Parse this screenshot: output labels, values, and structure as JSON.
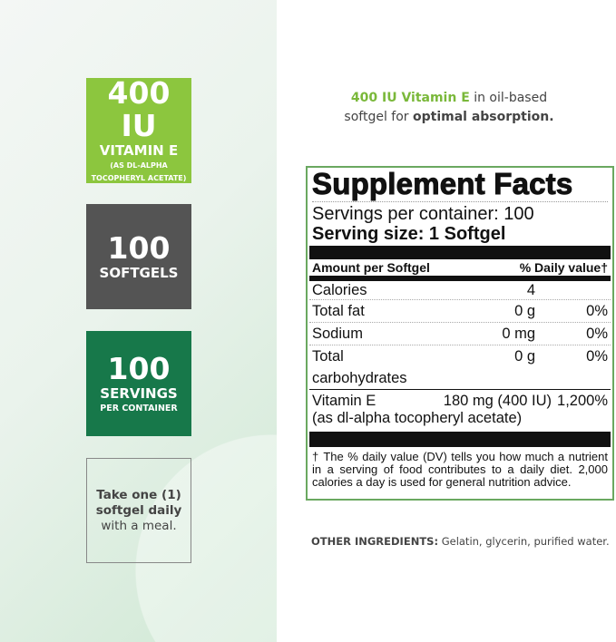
{
  "badges": [
    {
      "big": "400 IU",
      "mid": "VITAMIN E",
      "small1": "(AS DL-ALPHA",
      "small2": "TOCOPHERYL ACETATE)"
    },
    {
      "big": "100",
      "mid": "SOFTGELS"
    },
    {
      "big": "100",
      "mid": "SERVINGS",
      "small1": "PER CONTAINER"
    },
    {
      "line1": "Take one (1)",
      "line2": "softgel daily",
      "line3": "with a meal."
    }
  ],
  "tagline": {
    "highlight": "400 IU Vitamin E",
    "text1": " in oil-based",
    "text2": "softgel for ",
    "bold": "optimal absorption."
  },
  "facts": {
    "title": "Supplement Facts",
    "servings": "Servings per container: 100",
    "serving_size": "Serving size: 1 Softgel",
    "header_left": "Amount per Softgel",
    "header_right": "% Daily value†",
    "rows": [
      {
        "name": "Calories",
        "amount": "4",
        "dv": ""
      },
      {
        "name": "Total fat",
        "amount": "0 g",
        "dv": "0%"
      },
      {
        "name": "Sodium",
        "amount": "0 mg",
        "dv": "0%"
      },
      {
        "name": "Total carbohydrates",
        "amount": "0 g",
        "dv": "0%"
      }
    ],
    "vitamin": {
      "name": "Vitamin E",
      "amount": "180 mg (400 IU)",
      "dv": "1,200%",
      "source": "(as dl-alpha tocopheryl acetate)"
    },
    "footnote": "† The % daily value (DV) tells you how much a nutrient in a serving of food contributes to a daily diet. 2,000 calories a day is used for general nutrition advice."
  },
  "other": {
    "label": "OTHER INGREDIENTS:",
    "text": " Gelatin, glycerin, purified water."
  },
  "colors": {
    "green": "#8cc63e",
    "gray": "#545454",
    "dark_green": "#17784a"
  }
}
